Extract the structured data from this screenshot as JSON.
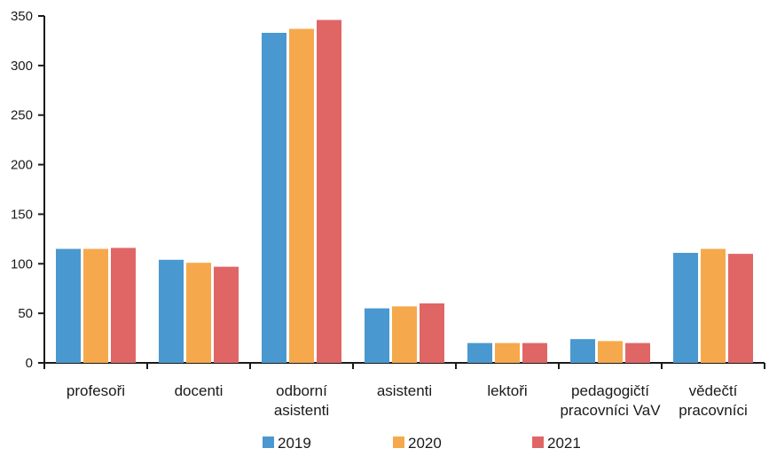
{
  "chart_data": {
    "type": "bar",
    "title": "",
    "xlabel": "",
    "ylabel": "",
    "ylim": [
      0,
      350
    ],
    "yticks": [
      "0",
      "50",
      "100",
      "150",
      "200",
      "250",
      "300",
      "350"
    ],
    "grid": false,
    "legend_position": "bottom",
    "categories": [
      [
        "profesoři"
      ],
      [
        "docenti"
      ],
      [
        "odborní",
        "asistenti"
      ],
      [
        "asistenti"
      ],
      [
        "lektoři"
      ],
      [
        "pedagogičtí",
        "pracovníci VaV"
      ],
      [
        "vědečtí",
        "pracovníci"
      ]
    ],
    "series": [
      {
        "name": "2019",
        "color": "#4a98d0",
        "values": [
          115,
          104,
          333,
          55,
          20,
          24,
          111
        ]
      },
      {
        "name": "2020",
        "color": "#f5a94c",
        "values": [
          115,
          101,
          337,
          57,
          20,
          22,
          115
        ]
      },
      {
        "name": "2021",
        "color": "#e06666",
        "values": [
          116,
          97,
          346,
          60,
          20,
          20,
          110
        ]
      }
    ]
  }
}
